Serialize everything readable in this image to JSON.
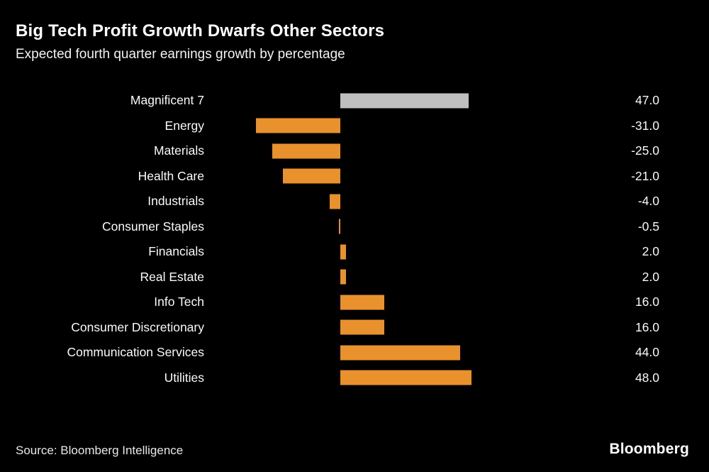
{
  "header": {
    "title": "Big Tech Profit Growth Dwarfs Other Sectors",
    "subtitle": "Expected fourth quarter earnings growth by percentage"
  },
  "footer": {
    "source": "Source: Bloomberg Intelligence",
    "logo": "Bloomberg"
  },
  "colors": {
    "background": "#000000",
    "bar_default": "#E8912D",
    "bar_highlight": "#BFBFBF",
    "text": "#FFFFFF"
  },
  "chart_data": {
    "type": "bar",
    "orientation": "horizontal",
    "title": "Big Tech Profit Growth Dwarfs Other Sectors",
    "subtitle": "Expected fourth quarter earnings growth by percentage",
    "xlabel": "",
    "ylabel": "",
    "xlim": [
      -47,
      56
    ],
    "grid": false,
    "categories": [
      "Magnificent 7",
      "Energy",
      "Materials",
      "Health Care",
      "Industrials",
      "Consumer Staples",
      "Financials",
      "Real Estate",
      "Info Tech",
      "Consumer Discretionary",
      "Communication Services",
      "Utilities"
    ],
    "values": [
      47.0,
      -31.0,
      -25.0,
      -21.0,
      -4.0,
      -0.5,
      2.0,
      2.0,
      16.0,
      16.0,
      44.0,
      48.0
    ],
    "value_labels": [
      "47.0",
      "-31.0",
      "-25.0",
      "-21.0",
      "-4.0",
      "-0.5",
      "2.0",
      "2.0",
      "16.0",
      "16.0",
      "44.0",
      "48.0"
    ],
    "bar_colors_key": [
      "highlight",
      "default",
      "default",
      "default",
      "default",
      "default",
      "default",
      "default",
      "default",
      "default",
      "default",
      "default"
    ]
  }
}
